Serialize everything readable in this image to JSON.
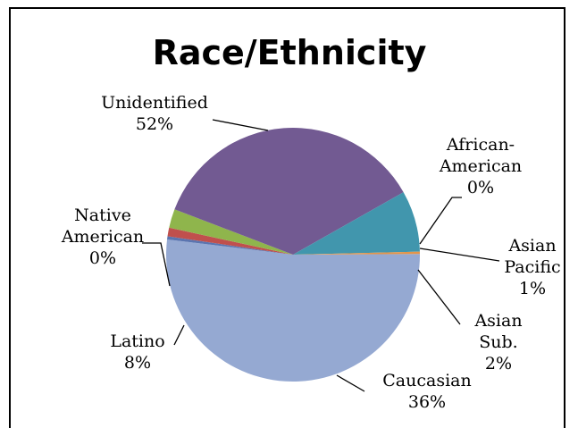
{
  "chart_data": {
    "type": "pie",
    "title": "Race/Ethnicity",
    "slices": [
      {
        "name": "Unidentified",
        "pct_label": "52%",
        "value": 52,
        "color": "#95a9d2"
      },
      {
        "name": "African-American",
        "pct_label": "0%",
        "value": 0.4,
        "color": "#5b75b0"
      },
      {
        "name": "Asian Pacific",
        "pct_label": "1%",
        "value": 1.1,
        "color": "#c0504d"
      },
      {
        "name": "Asian Sub.",
        "pct_label": "2%",
        "value": 2.4,
        "color": "#8fb54c"
      },
      {
        "name": "Caucasian",
        "pct_label": "36%",
        "value": 36,
        "color": "#725a92"
      },
      {
        "name": "Latino",
        "pct_label": "8%",
        "value": 7.8,
        "color": "#4196ad"
      },
      {
        "name": "Native American",
        "pct_label": "0%",
        "value": 0.3,
        "color": "#e3954a"
      }
    ],
    "labels": [
      {
        "lines": [
          "Unidentified",
          "52%"
        ]
      },
      {
        "lines": [
          "African-",
          "American",
          "0%"
        ]
      },
      {
        "lines": [
          "Asian",
          "Pacific",
          "1%"
        ]
      },
      {
        "lines": [
          "Asian",
          "Sub.",
          "2%"
        ]
      },
      {
        "lines": [
          "Caucasian",
          "36%"
        ]
      },
      {
        "lines": [
          "Latino",
          "8%"
        ]
      },
      {
        "lines": [
          "Native",
          "American",
          "0%"
        ]
      }
    ]
  }
}
